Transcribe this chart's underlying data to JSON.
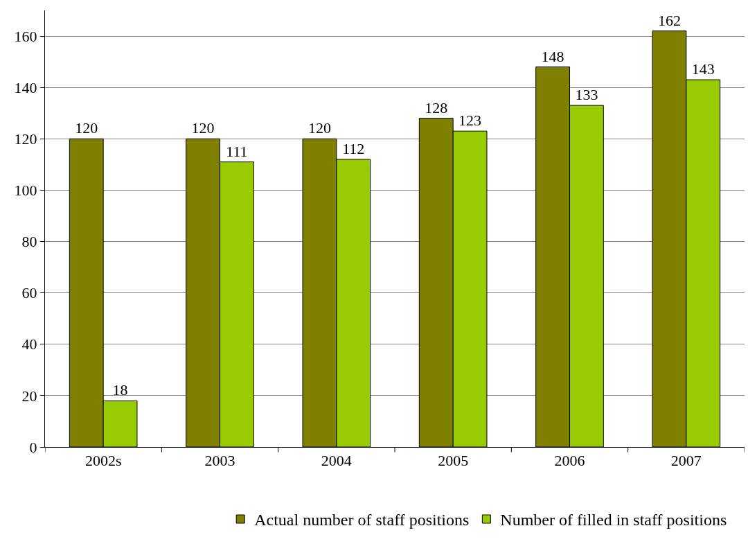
{
  "chart_data": {
    "type": "bar",
    "categories": [
      "2002s",
      "2003",
      "2004",
      "2005",
      "2006",
      "2007"
    ],
    "series": [
      {
        "name": "Actual number of staff positions",
        "color": "#808000",
        "values": [
          120,
          120,
          120,
          128,
          148,
          162
        ]
      },
      {
        "name": "Number of filled in staff positions",
        "color": "#99cc00",
        "values": [
          18,
          111,
          112,
          123,
          133,
          143
        ]
      }
    ],
    "ylim": [
      0,
      170
    ],
    "yticks": [
      0,
      20,
      40,
      60,
      80,
      100,
      120,
      140,
      160
    ],
    "grid": "y",
    "legend": "bottom",
    "data_labels": true
  }
}
